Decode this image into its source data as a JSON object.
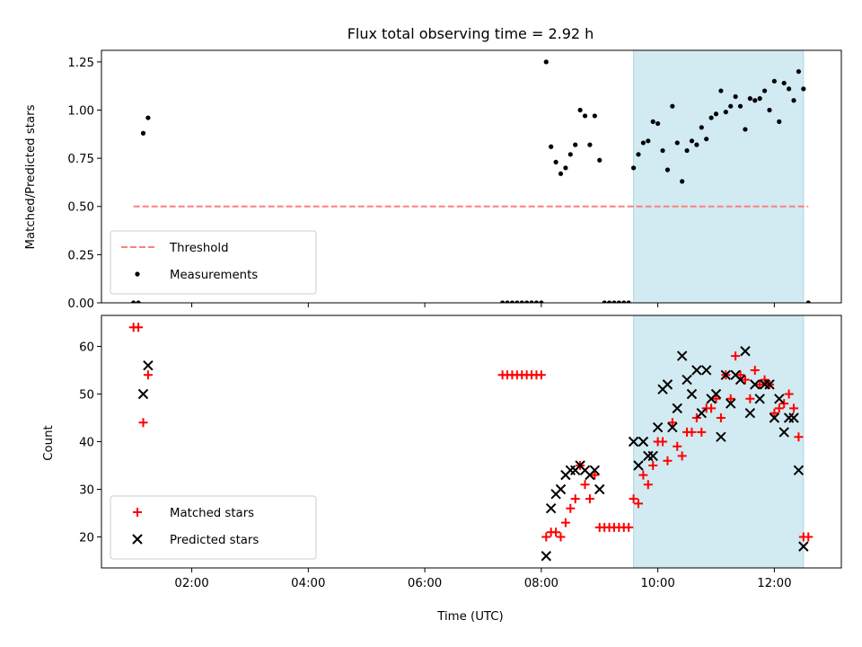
{
  "chart_data": [
    {
      "type": "scatter",
      "title": "Flux total observing time = 2.92 h",
      "ylabel": "Matched/Predicted stars",
      "xlabel": "",
      "xlim": [
        "00:27",
        "13:09"
      ],
      "ylim": [
        0,
        1.31
      ],
      "yticks": [
        "0.00",
        "0.25",
        "0.50",
        "0.75",
        "1.00",
        "1.25"
      ],
      "shaded_region": [
        "09:35",
        "12:30"
      ],
      "shade_color": "#add8e6",
      "threshold": {
        "name": "Threshold",
        "value": 0.5,
        "x_range": [
          "01:00",
          "12:35"
        ],
        "color": "#ff7f7f",
        "style": "dashed"
      },
      "series": [
        {
          "name": "Measurements",
          "marker": "dot",
          "color": "#000000",
          "points": [
            [
              "01:00",
              0.0
            ],
            [
              "01:05",
              0.0
            ],
            [
              "01:10",
              0.88
            ],
            [
              "01:15",
              0.96
            ],
            [
              "07:20",
              0.0
            ],
            [
              "07:25",
              0.0
            ],
            [
              "07:30",
              0.0
            ],
            [
              "07:35",
              0.0
            ],
            [
              "07:40",
              0.0
            ],
            [
              "07:45",
              0.0
            ],
            [
              "07:50",
              0.0
            ],
            [
              "07:55",
              0.0
            ],
            [
              "08:00",
              0.0
            ],
            [
              "08:05",
              1.25
            ],
            [
              "08:10",
              0.81
            ],
            [
              "08:15",
              0.73
            ],
            [
              "08:20",
              0.67
            ],
            [
              "08:25",
              0.7
            ],
            [
              "08:30",
              0.77
            ],
            [
              "08:35",
              0.82
            ],
            [
              "08:40",
              1.0
            ],
            [
              "08:45",
              0.97
            ],
            [
              "08:50",
              0.82
            ],
            [
              "08:55",
              0.97
            ],
            [
              "09:00",
              0.74
            ],
            [
              "09:05",
              0.0
            ],
            [
              "09:10",
              0.0
            ],
            [
              "09:15",
              0.0
            ],
            [
              "09:20",
              0.0
            ],
            [
              "09:25",
              0.0
            ],
            [
              "09:30",
              0.0
            ],
            [
              "09:35",
              0.7
            ],
            [
              "09:40",
              0.77
            ],
            [
              "09:45",
              0.83
            ],
            [
              "09:50",
              0.84
            ],
            [
              "09:55",
              0.94
            ],
            [
              "10:00",
              0.93
            ],
            [
              "10:05",
              0.79
            ],
            [
              "10:10",
              0.69
            ],
            [
              "10:15",
              1.02
            ],
            [
              "10:20",
              0.83
            ],
            [
              "10:25",
              0.63
            ],
            [
              "10:30",
              0.79
            ],
            [
              "10:35",
              0.84
            ],
            [
              "10:40",
              0.82
            ],
            [
              "10:45",
              0.91
            ],
            [
              "10:50",
              0.85
            ],
            [
              "10:55",
              0.96
            ],
            [
              "11:00",
              0.98
            ],
            [
              "11:05",
              1.1
            ],
            [
              "11:10",
              0.99
            ],
            [
              "11:15",
              1.02
            ],
            [
              "11:20",
              1.07
            ],
            [
              "11:25",
              1.02
            ],
            [
              "11:30",
              0.9
            ],
            [
              "11:35",
              1.06
            ],
            [
              "11:40",
              1.05
            ],
            [
              "11:45",
              1.06
            ],
            [
              "11:50",
              1.1
            ],
            [
              "11:55",
              1.0
            ],
            [
              "12:00",
              1.15
            ],
            [
              "12:05",
              0.94
            ],
            [
              "12:10",
              1.14
            ],
            [
              "12:15",
              1.11
            ],
            [
              "12:20",
              1.05
            ],
            [
              "12:25",
              1.2
            ],
            [
              "12:30",
              1.11
            ],
            [
              "12:35",
              0.0
            ]
          ]
        }
      ],
      "legend": {
        "position": "lower-left",
        "entries": [
          "Threshold",
          "Measurements"
        ]
      }
    },
    {
      "type": "scatter",
      "title": "",
      "ylabel": "Count",
      "xlabel": "Time (UTC)",
      "xlim": [
        "00:27",
        "13:09"
      ],
      "ylim": [
        13.5,
        66.5
      ],
      "xticks": [
        "02:00",
        "04:00",
        "06:00",
        "08:00",
        "10:00",
        "12:00"
      ],
      "yticks": [
        "20",
        "30",
        "40",
        "50",
        "60"
      ],
      "shaded_region": [
        "09:35",
        "12:30"
      ],
      "shade_color": "#add8e6",
      "series": [
        {
          "name": "Matched stars",
          "marker": "plus",
          "color": "#ff0000",
          "points": [
            [
              "01:00",
              64
            ],
            [
              "01:05",
              64
            ],
            [
              "01:10",
              44
            ],
            [
              "01:15",
              54
            ],
            [
              "07:20",
              54
            ],
            [
              "07:25",
              54
            ],
            [
              "07:30",
              54
            ],
            [
              "07:35",
              54
            ],
            [
              "07:40",
              54
            ],
            [
              "07:45",
              54
            ],
            [
              "07:50",
              54
            ],
            [
              "07:55",
              54
            ],
            [
              "08:00",
              54
            ],
            [
              "08:05",
              20
            ],
            [
              "08:10",
              21
            ],
            [
              "08:15",
              21
            ],
            [
              "08:20",
              20
            ],
            [
              "08:25",
              23
            ],
            [
              "08:30",
              26
            ],
            [
              "08:35",
              28
            ],
            [
              "08:40",
              35
            ],
            [
              "08:45",
              31
            ],
            [
              "08:50",
              28
            ],
            [
              "08:55",
              33
            ],
            [
              "09:00",
              22
            ],
            [
              "09:05",
              22
            ],
            [
              "09:10",
              22
            ],
            [
              "09:15",
              22
            ],
            [
              "09:20",
              22
            ],
            [
              "09:25",
              22
            ],
            [
              "09:30",
              22
            ],
            [
              "09:35",
              28
            ],
            [
              "09:40",
              27
            ],
            [
              "09:45",
              33
            ],
            [
              "09:50",
              31
            ],
            [
              "09:55",
              35
            ],
            [
              "10:00",
              40
            ],
            [
              "10:05",
              40
            ],
            [
              "10:10",
              36
            ],
            [
              "10:15",
              44
            ],
            [
              "10:20",
              39
            ],
            [
              "10:25",
              37
            ],
            [
              "10:30",
              42
            ],
            [
              "10:35",
              42
            ],
            [
              "10:40",
              45
            ],
            [
              "10:45",
              42
            ],
            [
              "10:50",
              47
            ],
            [
              "10:55",
              47
            ],
            [
              "11:00",
              49
            ],
            [
              "11:05",
              45
            ],
            [
              "11:10",
              54
            ],
            [
              "11:15",
              49
            ],
            [
              "11:20",
              58
            ],
            [
              "11:25",
              54
            ],
            [
              "11:30",
              53
            ],
            [
              "11:35",
              49
            ],
            [
              "11:40",
              55
            ],
            [
              "11:45",
              52
            ],
            [
              "11:50",
              53
            ],
            [
              "11:55",
              52
            ],
            [
              "12:00",
              46
            ],
            [
              "12:05",
              47
            ],
            [
              "12:10",
              48
            ],
            [
              "12:15",
              50
            ],
            [
              "12:20",
              47
            ],
            [
              "12:25",
              41
            ],
            [
              "12:30",
              20
            ],
            [
              "12:35",
              20
            ]
          ]
        },
        {
          "name": "Predicted stars",
          "marker": "x",
          "color": "#000000",
          "points": [
            [
              "01:10",
              50
            ],
            [
              "01:15",
              56
            ],
            [
              "08:05",
              16
            ],
            [
              "08:10",
              26
            ],
            [
              "08:15",
              29
            ],
            [
              "08:20",
              30
            ],
            [
              "08:25",
              33
            ],
            [
              "08:30",
              34
            ],
            [
              "08:35",
              34
            ],
            [
              "08:40",
              35
            ],
            [
              "08:45",
              34
            ],
            [
              "08:50",
              33
            ],
            [
              "08:55",
              34
            ],
            [
              "09:00",
              30
            ],
            [
              "09:35",
              40
            ],
            [
              "09:40",
              35
            ],
            [
              "09:45",
              40
            ],
            [
              "09:50",
              37
            ],
            [
              "09:55",
              37
            ],
            [
              "10:00",
              43
            ],
            [
              "10:05",
              51
            ],
            [
              "10:10",
              52
            ],
            [
              "10:15",
              43
            ],
            [
              "10:20",
              47
            ],
            [
              "10:25",
              58
            ],
            [
              "10:30",
              53
            ],
            [
              "10:35",
              50
            ],
            [
              "10:40",
              55
            ],
            [
              "10:45",
              46
            ],
            [
              "10:50",
              55
            ],
            [
              "10:55",
              49
            ],
            [
              "11:00",
              50
            ],
            [
              "11:05",
              41
            ],
            [
              "11:10",
              54
            ],
            [
              "11:15",
              48
            ],
            [
              "11:20",
              54
            ],
            [
              "11:25",
              53
            ],
            [
              "11:30",
              59
            ],
            [
              "11:35",
              46
            ],
            [
              "11:40",
              52
            ],
            [
              "11:45",
              49
            ],
            [
              "11:50",
              52
            ],
            [
              "11:55",
              52
            ],
            [
              "12:00",
              45
            ],
            [
              "12:05",
              49
            ],
            [
              "12:10",
              42
            ],
            [
              "12:15",
              45
            ],
            [
              "12:20",
              45
            ],
            [
              "12:25",
              34
            ],
            [
              "12:30",
              18
            ]
          ]
        }
      ],
      "legend": {
        "position": "lower-left",
        "entries": [
          "Matched stars",
          "Predicted stars"
        ]
      }
    }
  ]
}
